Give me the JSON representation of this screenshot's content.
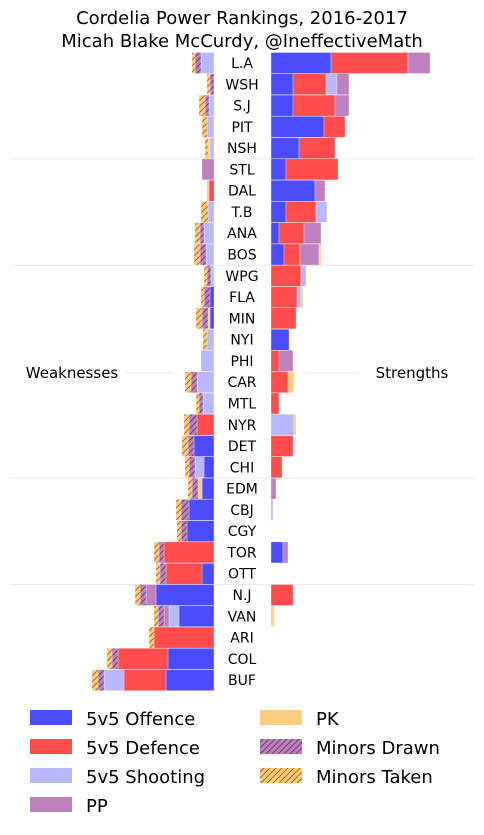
{
  "chart_data": {
    "type": "bar",
    "orientation": "horizontal-diverging",
    "title": "Cordelia Power Rankings, 2016-2017",
    "subtitle": "Micah Blake McCurdy, @IneffectiveMath",
    "left_label": "Weaknesses",
    "right_label": "Strengths",
    "categories": [
      "L.A",
      "WSH",
      "S.J",
      "PIT",
      "NSH",
      "STL",
      "DAL",
      "T.B",
      "ANA",
      "BOS",
      "WPG",
      "FLA",
      "MIN",
      "NYI",
      "PHI",
      "CAR",
      "MTL",
      "NYR",
      "DET",
      "CHI",
      "EDM",
      "CBJ",
      "CGY",
      "TOR",
      "OTT",
      "N.J",
      "VAN",
      "ARI",
      "COL",
      "BUF"
    ],
    "group_breaks_after": [
      4,
      9,
      19,
      24
    ],
    "legend_placement": "bottom",
    "grid": false,
    "series": [
      {
        "name": "5v5 Offence",
        "key": "off",
        "color": "#4b4bff",
        "hatch": null,
        "strength": [
          60,
          22,
          22,
          53,
          28,
          15,
          44,
          15,
          8,
          13,
          0,
          0,
          0,
          18,
          0,
          0,
          0,
          0,
          0,
          0,
          0,
          0,
          0,
          12,
          0,
          0,
          0,
          0,
          0,
          0
        ],
        "weakness": [
          0,
          0,
          0,
          0,
          0,
          0,
          0,
          0,
          0,
          0,
          0,
          4,
          4,
          0,
          0,
          0,
          0,
          0,
          20,
          10,
          12,
          25,
          27,
          0,
          12,
          58,
          35,
          0,
          46,
          48
        ]
      },
      {
        "name": "5v5 Defence",
        "key": "def",
        "color": "#ff4c4c",
        "hatch": null,
        "strength": [
          77,
          33,
          42,
          21,
          36,
          52,
          0,
          30,
          25,
          16,
          30,
          26,
          25,
          0,
          8,
          17,
          8,
          0,
          22,
          11,
          0,
          0,
          0,
          0,
          0,
          22,
          0,
          0,
          0,
          0
        ],
        "weakness": [
          0,
          0,
          0,
          0,
          0,
          0,
          5,
          0,
          0,
          0,
          0,
          0,
          0,
          0,
          0,
          0,
          0,
          17,
          0,
          0,
          0,
          0,
          0,
          50,
          36,
          0,
          0,
          60,
          50,
          42
        ]
      },
      {
        "name": "5v5 Shooting",
        "key": "sho",
        "color": "#b8b8ff",
        "hatch": null,
        "strength": [
          0,
          11,
          0,
          0,
          0,
          0,
          0,
          11,
          0,
          0,
          5,
          4,
          0,
          0,
          0,
          0,
          0,
          23,
          0,
          0,
          0,
          2,
          0,
          0,
          0,
          0,
          1,
          0,
          0,
          0
        ],
        "weakness": [
          13,
          0,
          5,
          7,
          4,
          0,
          0,
          6,
          10,
          8,
          3,
          0,
          0,
          7,
          13,
          17,
          11,
          0,
          0,
          9,
          0,
          0,
          0,
          0,
          0,
          0,
          10,
          0,
          0,
          20
        ]
      },
      {
        "name": "PP",
        "key": "pp",
        "color": "#bf80bf",
        "hatch": null,
        "strength": [
          22,
          12,
          14,
          0,
          0,
          0,
          10,
          0,
          17,
          19,
          0,
          0,
          0,
          0,
          14,
          0,
          0,
          0,
          0,
          0,
          5,
          0,
          0,
          5,
          0,
          0,
          0,
          0,
          0,
          0
        ],
        "weakness": [
          0,
          0,
          0,
          0,
          0,
          12,
          0,
          0,
          0,
          0,
          0,
          0,
          0,
          0,
          0,
          0,
          0,
          0,
          0,
          0,
          0,
          0,
          0,
          0,
          0,
          10,
          5,
          0,
          0,
          0
        ]
      },
      {
        "name": "PK",
        "key": "pk",
        "color": "#ffcc80",
        "hatch": null,
        "strength": [
          0,
          0,
          0,
          0,
          0,
          0,
          0,
          0,
          0,
          2,
          0,
          2,
          0,
          0,
          0,
          6,
          0,
          2,
          0,
          0,
          0,
          0,
          0,
          0,
          0,
          0,
          2,
          0,
          0,
          0
        ],
        "weakness": [
          0,
          0,
          0,
          0,
          2,
          0,
          2,
          0,
          0,
          0,
          0,
          0,
          2,
          0,
          0,
          0,
          0,
          0,
          0,
          0,
          4,
          0,
          0,
          0,
          0,
          0,
          0,
          0,
          0,
          0
        ]
      },
      {
        "name": "Minors Drawn",
        "key": "md",
        "color": "#bf80bf",
        "hatch": "diagonal",
        "strength": [
          0,
          0,
          0,
          0,
          0,
          0,
          0,
          0,
          0,
          0,
          0,
          0,
          0,
          0,
          0,
          0,
          0,
          0,
          0,
          0,
          0,
          0,
          0,
          0,
          0,
          0,
          0,
          0,
          0,
          0
        ],
        "weakness": [
          6,
          4,
          4,
          0,
          0,
          0,
          0,
          0,
          4,
          6,
          4,
          6,
          6,
          0,
          0,
          6,
          4,
          8,
          6,
          6,
          6,
          8,
          6,
          5,
          6,
          6,
          6,
          0,
          6,
          6
        ]
      },
      {
        "name": "Minors Taken",
        "key": "mt",
        "color": "#ffcc80",
        "hatch": "diagonal",
        "strength": [
          0,
          0,
          0,
          0,
          0,
          0,
          0,
          0,
          0,
          0,
          0,
          0,
          0,
          0,
          0,
          0,
          0,
          0,
          0,
          0,
          0,
          0,
          0,
          0,
          0,
          0,
          0,
          0,
          0,
          0
        ],
        "weakness": [
          3,
          3,
          6,
          5,
          3,
          0,
          0,
          7,
          5,
          6,
          3,
          3,
          6,
          4,
          0,
          6,
          3,
          5,
          6,
          4,
          4,
          5,
          4,
          5,
          4,
          5,
          4,
          5,
          5,
          6
        ]
      }
    ]
  }
}
